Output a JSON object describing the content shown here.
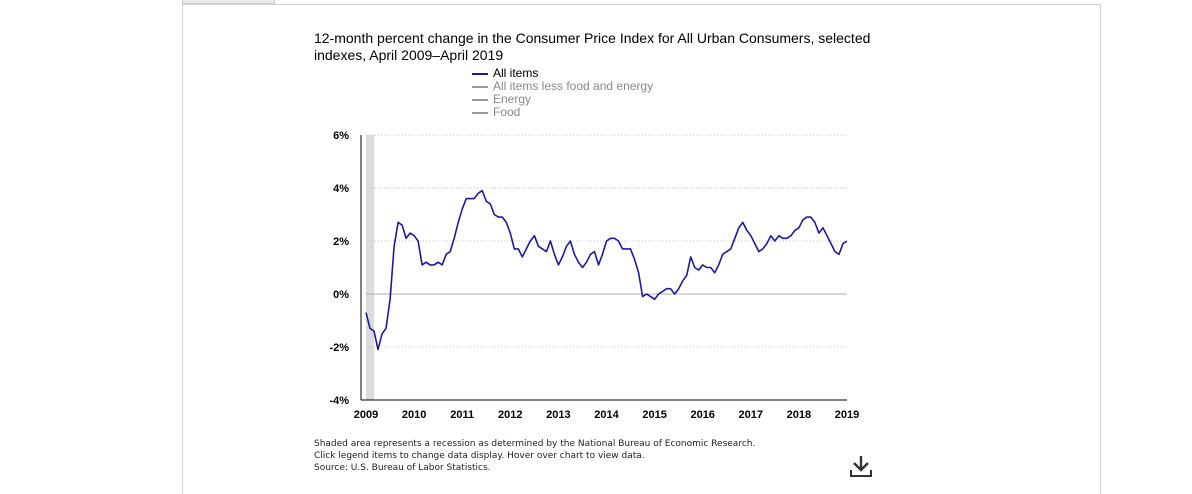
{
  "chart_data": {
    "type": "line",
    "title": "12-month percent change in the Consumer Price Index for All Urban Consumers, selected indexes, April 2009–April 2019",
    "xlabel": "",
    "ylabel": "",
    "x_range": [
      2009.25,
      2019.25
    ],
    "ylim": [
      -4,
      6
    ],
    "y_ticks": [
      -4,
      -2,
      0,
      2,
      4,
      6
    ],
    "y_tick_labels": [
      "-4%",
      "-2%",
      "0%",
      "2%",
      "4%",
      "6%"
    ],
    "x_ticks": [
      2009,
      2010,
      2011,
      2012,
      2013,
      2014,
      2015,
      2016,
      2017,
      2018,
      2019
    ],
    "x_tick_labels": [
      "2009",
      "2010",
      "2011",
      "2012",
      "2013",
      "2014",
      "2015",
      "2016",
      "2017",
      "2018",
      "2019"
    ],
    "grid": "dotted horizontal",
    "legend_position": "top-center",
    "recession_shading": [
      2009.25,
      2009.42
    ],
    "legend": [
      {
        "name": "All items",
        "active": true
      },
      {
        "name": "All items less food and energy",
        "active": false
      },
      {
        "name": "Energy",
        "active": false
      },
      {
        "name": "Food",
        "active": false
      }
    ],
    "series": [
      {
        "name": "All items",
        "color": "#1a1aa6",
        "start": "2009-04",
        "frequency": "monthly",
        "values": [
          -0.7,
          -1.3,
          -1.4,
          -2.1,
          -1.5,
          -1.3,
          -0.2,
          1.8,
          2.7,
          2.6,
          2.1,
          2.3,
          2.2,
          2.0,
          1.1,
          1.2,
          1.1,
          1.1,
          1.2,
          1.1,
          1.5,
          1.6,
          2.1,
          2.7,
          3.2,
          3.6,
          3.6,
          3.6,
          3.8,
          3.9,
          3.5,
          3.4,
          3.0,
          2.9,
          2.9,
          2.7,
          2.3,
          1.7,
          1.7,
          1.4,
          1.7,
          2.0,
          2.2,
          1.8,
          1.7,
          1.6,
          2.0,
          1.5,
          1.1,
          1.4,
          1.8,
          2.0,
          1.5,
          1.2,
          1.0,
          1.2,
          1.5,
          1.6,
          1.1,
          1.5,
          2.0,
          2.1,
          2.1,
          2.0,
          1.7,
          1.7,
          1.7,
          1.3,
          0.8,
          -0.1,
          0.0,
          -0.1,
          -0.2,
          0.0,
          0.1,
          0.2,
          0.2,
          0.0,
          0.2,
          0.5,
          0.7,
          1.4,
          1.0,
          0.9,
          1.1,
          1.0,
          1.0,
          0.8,
          1.1,
          1.5,
          1.6,
          1.7,
          2.1,
          2.5,
          2.7,
          2.4,
          2.2,
          1.9,
          1.6,
          1.7,
          1.9,
          2.2,
          2.0,
          2.2,
          2.1,
          2.1,
          2.2,
          2.4,
          2.5,
          2.8,
          2.9,
          2.9,
          2.7,
          2.3,
          2.5,
          2.2,
          1.9,
          1.6,
          1.5,
          1.9,
          2.0
        ]
      }
    ]
  },
  "notes": [
    "Shaded area represents a recession as determined by the National Bureau of Economic Research.",
    "Click legend items to change data display. Hover over chart to view data.",
    "Source: U.S. Bureau of Labor Statistics."
  ],
  "download_icon": "download-icon"
}
